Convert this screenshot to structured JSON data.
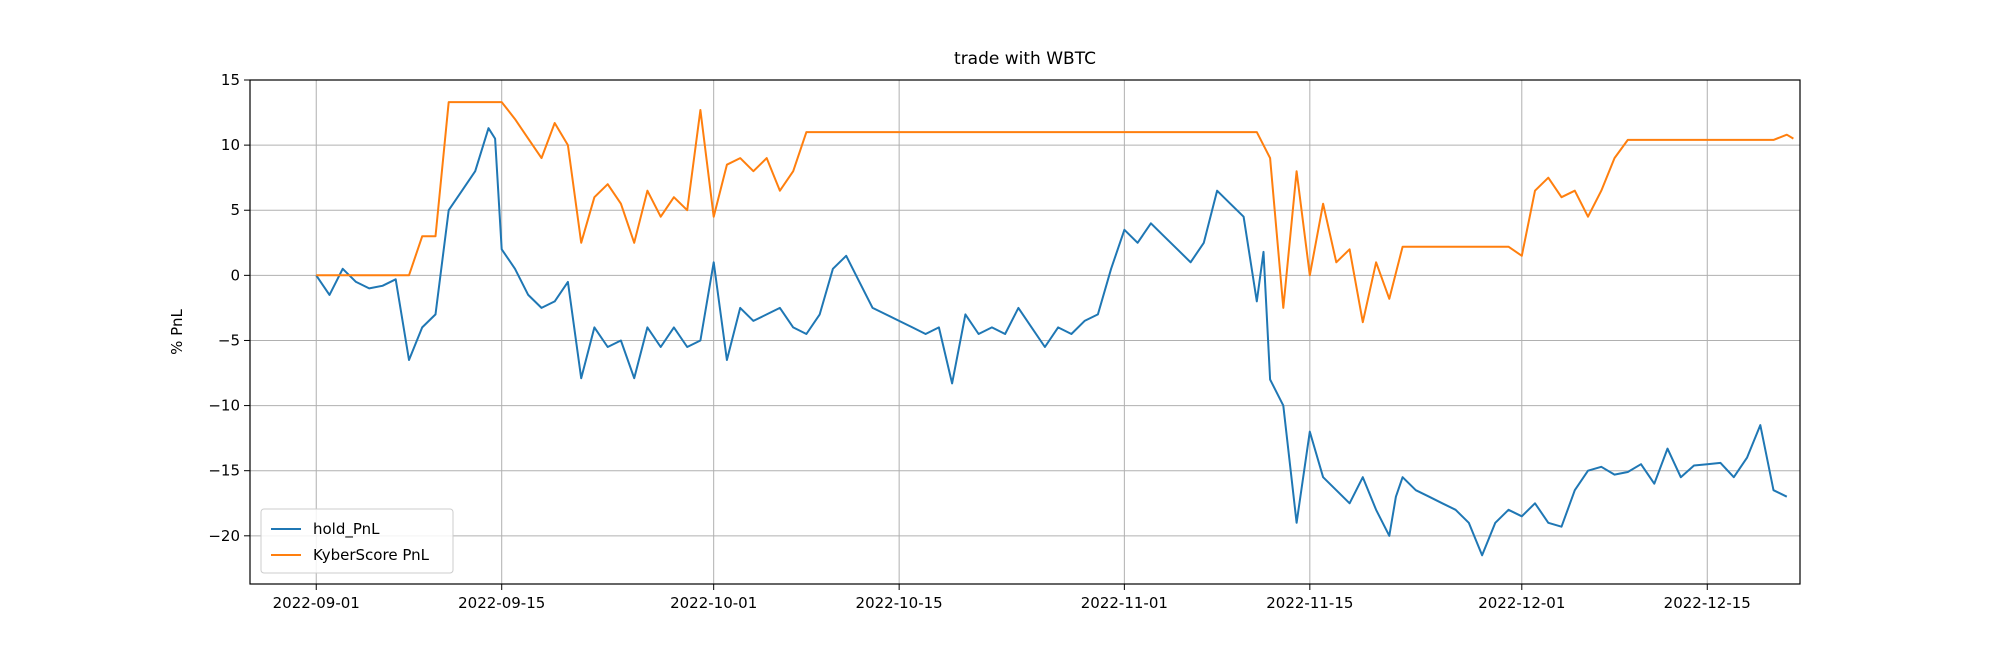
{
  "chart_data": {
    "type": "line",
    "title": "trade with WBTC",
    "xlabel": "",
    "ylabel": "% PnL",
    "xlim": [
      "2022-08-27",
      "2022-12-22"
    ],
    "ylim": [
      -23.7,
      15
    ],
    "x_ticks": [
      "2022-09-01",
      "2022-09-15",
      "2022-10-01",
      "2022-10-15",
      "2022-11-01",
      "2022-11-15",
      "2022-12-01",
      "2022-12-15"
    ],
    "y_ticks": [
      15,
      10,
      5,
      0,
      -5,
      -10,
      -15,
      -20
    ],
    "grid": true,
    "legend_position": "lower-left",
    "series": [
      {
        "name": "hold_PnL",
        "color": "#1f77b4",
        "points": [
          [
            "2022-09-01",
            0.0
          ],
          [
            "2022-09-02",
            -1.5
          ],
          [
            "2022-09-03",
            0.5
          ],
          [
            "2022-09-04",
            -0.5
          ],
          [
            "2022-09-05",
            -1.0
          ],
          [
            "2022-09-06",
            -0.8
          ],
          [
            "2022-09-07",
            -0.3
          ],
          [
            "2022-09-08",
            -6.5
          ],
          [
            "2022-09-09",
            -4.0
          ],
          [
            "2022-09-10",
            -3.0
          ],
          [
            "2022-09-11",
            5.0
          ],
          [
            "2022-09-12",
            6.5
          ],
          [
            "2022-09-13",
            8.0
          ],
          [
            "2022-09-14",
            11.3
          ],
          [
            "2022-09-14T12",
            10.5
          ],
          [
            "2022-09-15",
            2.0
          ],
          [
            "2022-09-16",
            0.5
          ],
          [
            "2022-09-17",
            -1.5
          ],
          [
            "2022-09-18",
            -2.5
          ],
          [
            "2022-09-19",
            -2.0
          ],
          [
            "2022-09-20",
            -0.5
          ],
          [
            "2022-09-21",
            -7.9
          ],
          [
            "2022-09-22",
            -4.0
          ],
          [
            "2022-09-23",
            -5.5
          ],
          [
            "2022-09-24",
            -5.0
          ],
          [
            "2022-09-25",
            -7.9
          ],
          [
            "2022-09-26",
            -4.0
          ],
          [
            "2022-09-27",
            -5.5
          ],
          [
            "2022-09-28",
            -4.0
          ],
          [
            "2022-09-29",
            -5.5
          ],
          [
            "2022-09-30",
            -5.0
          ],
          [
            "2022-10-01",
            1.0
          ],
          [
            "2022-10-02",
            -6.5
          ],
          [
            "2022-10-03",
            -2.5
          ],
          [
            "2022-10-04",
            -3.5
          ],
          [
            "2022-10-05",
            -3.0
          ],
          [
            "2022-10-06",
            -2.5
          ],
          [
            "2022-10-07",
            -4.0
          ],
          [
            "2022-10-08",
            -4.5
          ],
          [
            "2022-10-09",
            -3.0
          ],
          [
            "2022-10-10",
            0.5
          ],
          [
            "2022-10-11",
            1.5
          ],
          [
            "2022-10-12",
            -0.5
          ],
          [
            "2022-10-13",
            -2.5
          ],
          [
            "2022-10-14",
            -3.0
          ],
          [
            "2022-10-15",
            -3.5
          ],
          [
            "2022-10-16",
            -4.0
          ],
          [
            "2022-10-17",
            -4.5
          ],
          [
            "2022-10-18",
            -4.0
          ],
          [
            "2022-10-19",
            -8.3
          ],
          [
            "2022-10-20",
            -3.0
          ],
          [
            "2022-10-21",
            -4.5
          ],
          [
            "2022-10-22",
            -4.0
          ],
          [
            "2022-10-23",
            -4.5
          ],
          [
            "2022-10-24",
            -2.5
          ],
          [
            "2022-10-25",
            -4.0
          ],
          [
            "2022-10-26",
            -5.5
          ],
          [
            "2022-10-27",
            -4.0
          ],
          [
            "2022-10-28",
            -4.5
          ],
          [
            "2022-10-29",
            -3.5
          ],
          [
            "2022-10-30",
            -3.0
          ],
          [
            "2022-10-31",
            0.5
          ],
          [
            "2022-11-01",
            3.5
          ],
          [
            "2022-11-02",
            2.5
          ],
          [
            "2022-11-03",
            4.0
          ],
          [
            "2022-11-04",
            3.0
          ],
          [
            "2022-11-05",
            2.0
          ],
          [
            "2022-11-06",
            1.0
          ],
          [
            "2022-11-07",
            2.5
          ],
          [
            "2022-11-08",
            6.5
          ],
          [
            "2022-11-09",
            5.5
          ],
          [
            "2022-11-10",
            4.5
          ],
          [
            "2022-11-11",
            -2.0
          ],
          [
            "2022-11-11T12",
            1.8
          ],
          [
            "2022-11-12",
            -8.0
          ],
          [
            "2022-11-13",
            -10.0
          ],
          [
            "2022-11-14",
            -19.0
          ],
          [
            "2022-11-15",
            -12.0
          ],
          [
            "2022-11-16",
            -15.5
          ],
          [
            "2022-11-17",
            -16.5
          ],
          [
            "2022-11-18",
            -17.5
          ],
          [
            "2022-11-19",
            -15.5
          ],
          [
            "2022-11-20",
            -18.0
          ],
          [
            "2022-11-21",
            -20.0
          ],
          [
            "2022-11-21T12",
            -17.0
          ],
          [
            "2022-11-22",
            -15.5
          ],
          [
            "2022-11-23",
            -16.5
          ],
          [
            "2022-11-24",
            -17.0
          ],
          [
            "2022-11-25",
            -17.5
          ],
          [
            "2022-11-26",
            -18.0
          ],
          [
            "2022-11-27",
            -19.0
          ],
          [
            "2022-11-28",
            -21.5
          ],
          [
            "2022-11-29",
            -19.0
          ],
          [
            "2022-11-30",
            -18.0
          ],
          [
            "2022-12-01",
            -18.5
          ],
          [
            "2022-12-02",
            -17.5
          ],
          [
            "2022-12-03",
            -19.0
          ],
          [
            "2022-12-04",
            -19.3
          ],
          [
            "2022-12-05",
            -16.5
          ],
          [
            "2022-12-06",
            -15.0
          ],
          [
            "2022-12-07",
            -14.7
          ],
          [
            "2022-12-08",
            -15.3
          ],
          [
            "2022-12-09",
            -15.1
          ],
          [
            "2022-12-10",
            -14.5
          ],
          [
            "2022-12-11",
            -16.0
          ],
          [
            "2022-12-12",
            -13.3
          ],
          [
            "2022-12-13",
            -15.5
          ],
          [
            "2022-12-14",
            -14.6
          ],
          [
            "2022-12-15",
            -14.5
          ],
          [
            "2022-12-16",
            -14.4
          ],
          [
            "2022-12-17",
            -15.5
          ],
          [
            "2022-12-18",
            -14.0
          ],
          [
            "2022-12-19",
            -11.5
          ],
          [
            "2022-12-20",
            -16.5
          ],
          [
            "2022-12-21",
            -17.0
          ]
        ]
      },
      {
        "name": "KyberScore PnL",
        "color": "#ff7f0e",
        "points": [
          [
            "2022-09-01",
            0.0
          ],
          [
            "2022-09-08",
            0.0
          ],
          [
            "2022-09-09",
            3.0
          ],
          [
            "2022-09-10",
            3.0
          ],
          [
            "2022-09-11",
            13.3
          ],
          [
            "2022-09-15",
            13.3
          ],
          [
            "2022-09-16",
            12.0
          ],
          [
            "2022-09-17",
            10.5
          ],
          [
            "2022-09-18",
            9.0
          ],
          [
            "2022-09-19",
            11.7
          ],
          [
            "2022-09-20",
            10.0
          ],
          [
            "2022-09-21",
            2.5
          ],
          [
            "2022-09-22",
            6.0
          ],
          [
            "2022-09-23",
            7.0
          ],
          [
            "2022-09-24",
            5.5
          ],
          [
            "2022-09-25",
            2.5
          ],
          [
            "2022-09-26",
            6.5
          ],
          [
            "2022-09-27",
            4.5
          ],
          [
            "2022-09-28",
            6.0
          ],
          [
            "2022-09-29",
            5.0
          ],
          [
            "2022-09-30",
            12.7
          ],
          [
            "2022-10-01",
            4.5
          ],
          [
            "2022-10-02",
            8.5
          ],
          [
            "2022-10-03",
            9.0
          ],
          [
            "2022-10-04",
            8.0
          ],
          [
            "2022-10-05",
            9.0
          ],
          [
            "2022-10-06",
            6.5
          ],
          [
            "2022-10-07",
            8.0
          ],
          [
            "2022-10-08",
            11.0
          ],
          [
            "2022-11-11",
            11.0
          ],
          [
            "2022-11-12",
            9.0
          ],
          [
            "2022-11-13",
            -2.5
          ],
          [
            "2022-11-14",
            8.0
          ],
          [
            "2022-11-15",
            0.0
          ],
          [
            "2022-11-16",
            5.5
          ],
          [
            "2022-11-17",
            1.0
          ],
          [
            "2022-11-18",
            2.0
          ],
          [
            "2022-11-19",
            -3.6
          ],
          [
            "2022-11-20",
            1.0
          ],
          [
            "2022-11-21",
            -1.8
          ],
          [
            "2022-11-22",
            2.2
          ],
          [
            "2022-11-30",
            2.2
          ],
          [
            "2022-12-01",
            1.5
          ],
          [
            "2022-12-02",
            6.5
          ],
          [
            "2022-12-03",
            7.5
          ],
          [
            "2022-12-04",
            6.0
          ],
          [
            "2022-12-05",
            6.5
          ],
          [
            "2022-12-06",
            4.5
          ],
          [
            "2022-12-07",
            6.5
          ],
          [
            "2022-12-08",
            9.0
          ],
          [
            "2022-12-09",
            10.4
          ],
          [
            "2022-12-20",
            10.4
          ],
          [
            "2022-12-21",
            10.8
          ],
          [
            "2022-12-21T12",
            10.5
          ]
        ]
      }
    ]
  }
}
